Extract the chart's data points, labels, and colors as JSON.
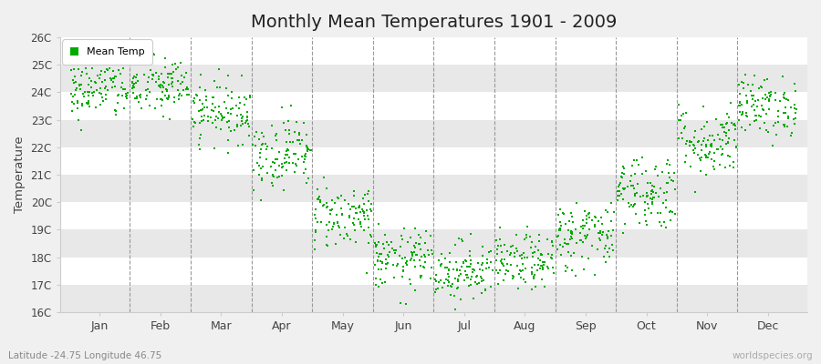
{
  "title": "Monthly Mean Temperatures 1901 - 2009",
  "ylabel": "Temperature",
  "subtitle": "Latitude -24.75 Longitude 46.75",
  "watermark": "worldspecies.org",
  "legend_label": "Mean Temp",
  "dot_color": "#00aa00",
  "fig_bg_color": "#f0f0f0",
  "plot_bg_color": "#ffffff",
  "band_color": "#e8e8e8",
  "ylim": [
    16,
    26
  ],
  "yticks": [
    16,
    17,
    18,
    19,
    20,
    21,
    22,
    23,
    24,
    25,
    26
  ],
  "ytick_labels": [
    "16C",
    "17C",
    "18C",
    "19C",
    "20C",
    "21C",
    "22C",
    "23C",
    "24C",
    "25C",
    "26C"
  ],
  "months": [
    "Jan",
    "Feb",
    "Mar",
    "Apr",
    "May",
    "Jun",
    "Jul",
    "Aug",
    "Sep",
    "Oct",
    "Nov",
    "Dec"
  ],
  "monthly_means": [
    24.1,
    24.2,
    23.3,
    21.8,
    19.5,
    17.9,
    17.5,
    17.8,
    18.8,
    20.4,
    22.2,
    23.5
  ],
  "monthly_stds": [
    0.55,
    0.55,
    0.55,
    0.65,
    0.6,
    0.55,
    0.55,
    0.5,
    0.65,
    0.7,
    0.65,
    0.55
  ],
  "n_years": 109,
  "seed": 42,
  "marker_size": 3,
  "dpi": 100,
  "figsize": [
    9.0,
    4.0
  ]
}
